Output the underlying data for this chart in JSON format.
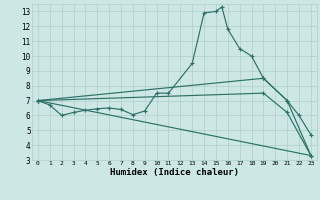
{
  "xlabel": "Humidex (Indice chaleur)",
  "bg_color": "#cde8e4",
  "grid_color": "#aecfca",
  "line_color": "#2d7068",
  "xlim": [
    -0.5,
    23.5
  ],
  "ylim": [
    3,
    13.5
  ],
  "yticks": [
    3,
    4,
    5,
    6,
    7,
    8,
    9,
    10,
    11,
    12,
    13
  ],
  "xticks": [
    0,
    1,
    2,
    3,
    4,
    5,
    6,
    7,
    8,
    9,
    10,
    11,
    12,
    13,
    14,
    15,
    16,
    17,
    18,
    19,
    20,
    21,
    22,
    23
  ],
  "line1_x": [
    0,
    1,
    2,
    3,
    4,
    5,
    6,
    7,
    8,
    9,
    10,
    11,
    13,
    14,
    15,
    15.5,
    16,
    17,
    18,
    19,
    21,
    22,
    23
  ],
  "line1_y": [
    7,
    6.7,
    6.0,
    6.2,
    6.35,
    6.45,
    6.5,
    6.4,
    6.05,
    6.3,
    7.5,
    7.5,
    9.5,
    12.9,
    13.0,
    13.3,
    11.8,
    10.5,
    10.0,
    8.5,
    7.0,
    6.0,
    4.7
  ],
  "line2_x": [
    0,
    23
  ],
  "line2_y": [
    7,
    3.3
  ],
  "line3_x": [
    0,
    19,
    21,
    23
  ],
  "line3_y": [
    7,
    8.5,
    7.0,
    3.3
  ],
  "line4_x": [
    0,
    19,
    21,
    23
  ],
  "line4_y": [
    7,
    7.5,
    6.2,
    3.3
  ]
}
